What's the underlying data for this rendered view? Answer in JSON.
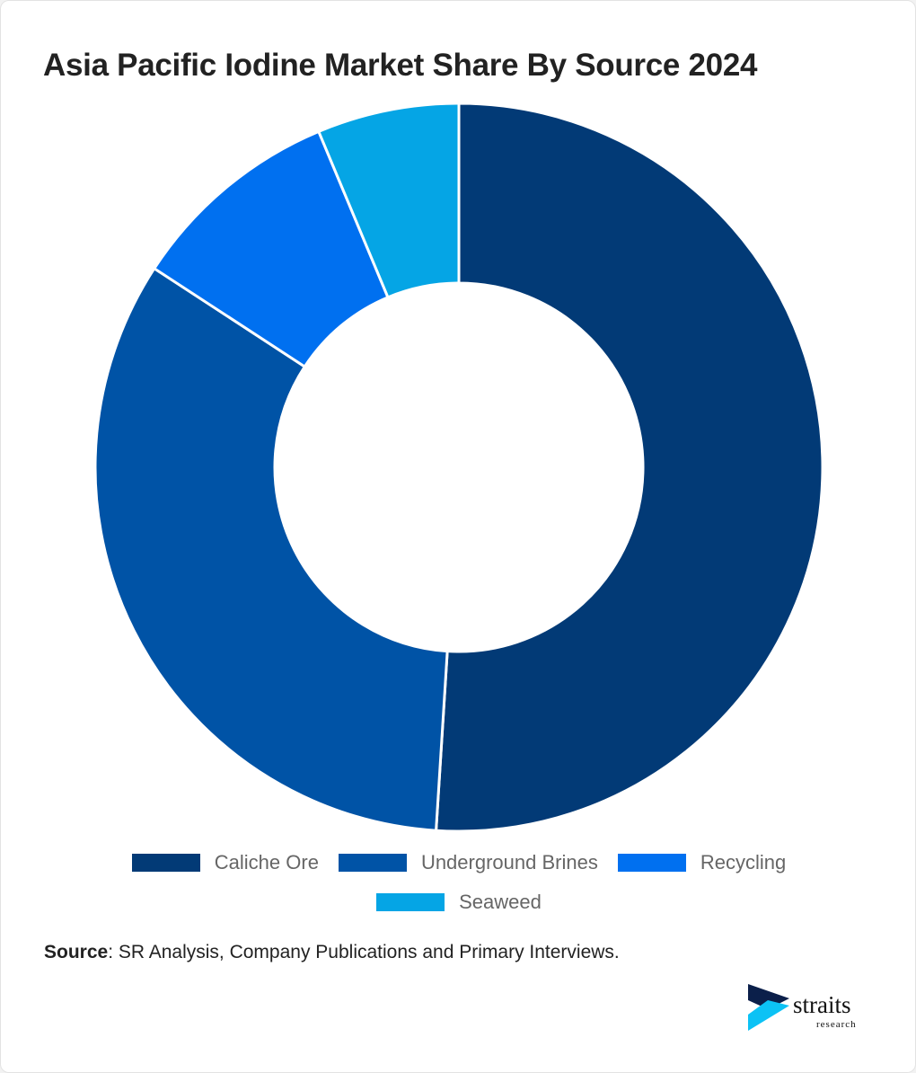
{
  "chart_data": {
    "type": "pie",
    "variant": "donut",
    "title": "Asia Pacific Iodine Market Share By Source 2024",
    "categories": [
      "Caliche Ore",
      "Underground Brines",
      "Recycling",
      "Seaweed"
    ],
    "values": [
      51.0,
      33.2,
      9.5,
      6.3
    ],
    "unit": "%",
    "colors": [
      "#023a76",
      "#0053a6",
      "#0070f0",
      "#05a5e5"
    ],
    "legend_position": "bottom"
  },
  "source": {
    "label": "Source",
    "text": ": SR Analysis, Company Publications and Primary Interviews."
  },
  "logo": {
    "name": "straits",
    "sub": "research"
  }
}
